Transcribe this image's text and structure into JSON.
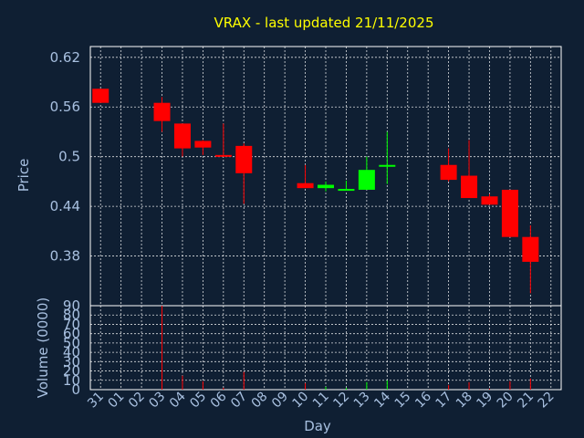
{
  "title": "VRAX - last updated 21/11/2025",
  "chart_data": {
    "type": "candlestick",
    "title": "VRAX - last updated 21/11/2025",
    "xlabel": "Day",
    "ylabel_price": "Price",
    "ylabel_volume": "Volume (0000)",
    "x_ticks": [
      "31",
      "01",
      "02",
      "03",
      "04",
      "05",
      "06",
      "07",
      "08",
      "09",
      "10",
      "11",
      "12",
      "13",
      "14",
      "15",
      "16",
      "17",
      "18",
      "19",
      "20",
      "21",
      "22"
    ],
    "price_ticks": [
      "0.62",
      "0.56",
      "0.5",
      "0.44",
      "0.38"
    ],
    "price_range": [
      0.32,
      0.633
    ],
    "volume_ticks": [
      "90",
      "80",
      "70",
      "60",
      "50",
      "40",
      "30",
      "20",
      "10",
      "0"
    ],
    "volume_range": [
      0,
      90
    ],
    "grid": true,
    "up_color": "#00ff00",
    "down_color": "#ff0000",
    "candles": [
      {
        "day": "31",
        "open": 0.582,
        "high": 0.582,
        "low": 0.565,
        "close": 0.565,
        "volume": 0
      },
      {
        "day": "03",
        "open": 0.565,
        "high": 0.572,
        "low": 0.53,
        "close": 0.543,
        "volume": 90
      },
      {
        "day": "04",
        "open": 0.54,
        "high": 0.54,
        "low": 0.5,
        "close": 0.51,
        "volume": 15
      },
      {
        "day": "05",
        "open": 0.519,
        "high": 0.52,
        "low": 0.502,
        "close": 0.511,
        "volume": 9
      },
      {
        "day": "06",
        "open": 0.502,
        "high": 0.54,
        "low": 0.5,
        "close": 0.5,
        "volume": 2
      },
      {
        "day": "07",
        "open": 0.513,
        "high": 0.516,
        "low": 0.443,
        "close": 0.48,
        "volume": 19
      },
      {
        "day": "10",
        "open": 0.468,
        "high": 0.49,
        "low": 0.462,
        "close": 0.462,
        "volume": 7
      },
      {
        "day": "11",
        "open": 0.462,
        "high": 0.47,
        "low": 0.458,
        "close": 0.466,
        "volume": 3
      },
      {
        "day": "12",
        "open": 0.46,
        "high": 0.471,
        "low": 0.459,
        "close": 0.461,
        "volume": 2
      },
      {
        "day": "13",
        "open": 0.46,
        "high": 0.5,
        "low": 0.46,
        "close": 0.484,
        "volume": 8
      },
      {
        "day": "14",
        "open": 0.488,
        "high": 0.53,
        "low": 0.467,
        "close": 0.49,
        "volume": 10
      },
      {
        "day": "17",
        "open": 0.49,
        "high": 0.51,
        "low": 0.47,
        "close": 0.472,
        "volume": 5
      },
      {
        "day": "18",
        "open": 0.477,
        "high": 0.52,
        "low": 0.45,
        "close": 0.45,
        "volume": 8
      },
      {
        "day": "19",
        "open": 0.452,
        "high": 0.455,
        "low": 0.442,
        "close": 0.442,
        "volume": 1
      },
      {
        "day": "20",
        "open": 0.46,
        "high": 0.46,
        "low": 0.403,
        "close": 0.403,
        "volume": 9
      },
      {
        "day": "21",
        "open": 0.403,
        "high": 0.417,
        "low": 0.335,
        "close": 0.373,
        "volume": 12
      }
    ]
  }
}
